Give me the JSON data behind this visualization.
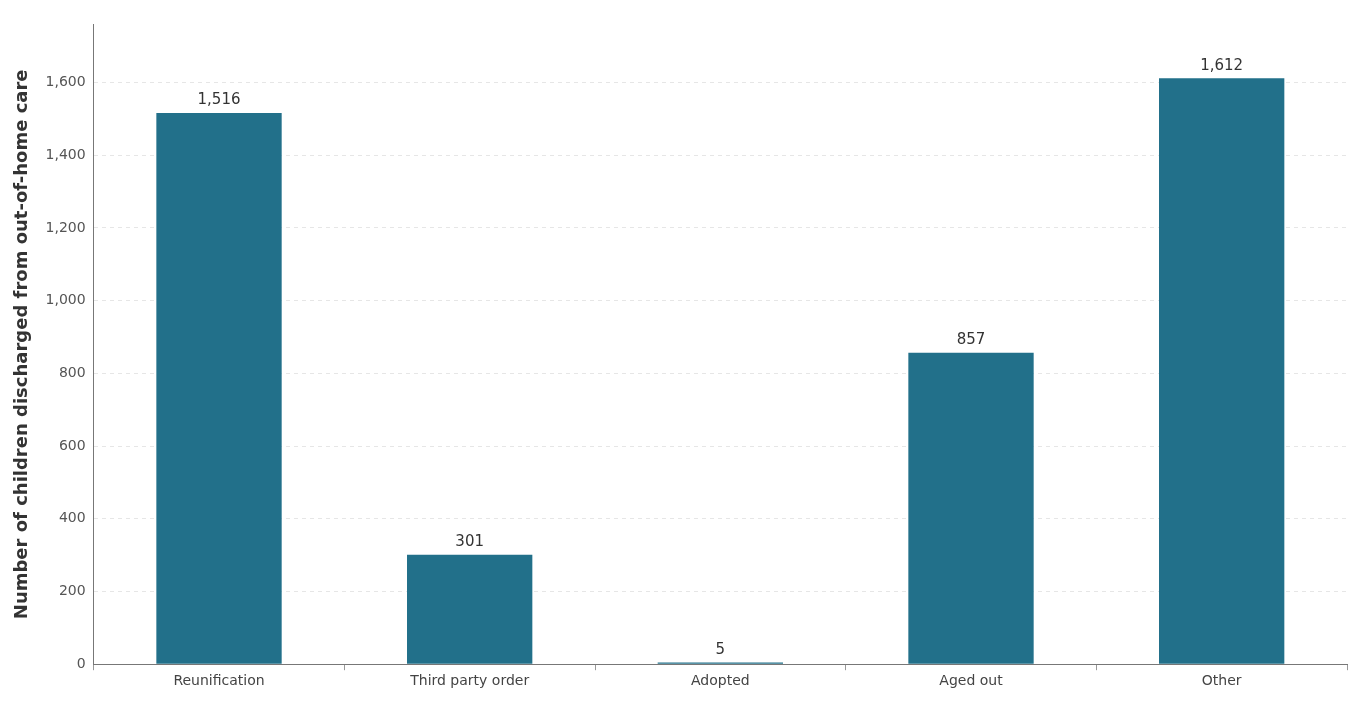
{
  "chart_data": {
    "type": "bar",
    "ylabel": "Number of children discharged from out-of-home care",
    "categories": [
      "Reunification",
      "Third party order",
      "Adopted",
      "Aged out",
      "Other"
    ],
    "values": [
      1516,
      301,
      5,
      857,
      1612
    ],
    "value_labels": [
      "1,516",
      "301",
      "5",
      "857",
      "1,612"
    ],
    "color": "#22708a",
    "ylim": [
      0,
      1760
    ],
    "yticks": [
      0,
      200,
      400,
      600,
      800,
      {
        "value": 1000,
        "label": "1,000"
      },
      {
        "value": 1200,
        "label": "1,200"
      },
      {
        "value": 1400,
        "label": "1,400"
      },
      {
        "value": 1600,
        "label": "1,600"
      }
    ],
    "grid": "y",
    "legend": false
  }
}
